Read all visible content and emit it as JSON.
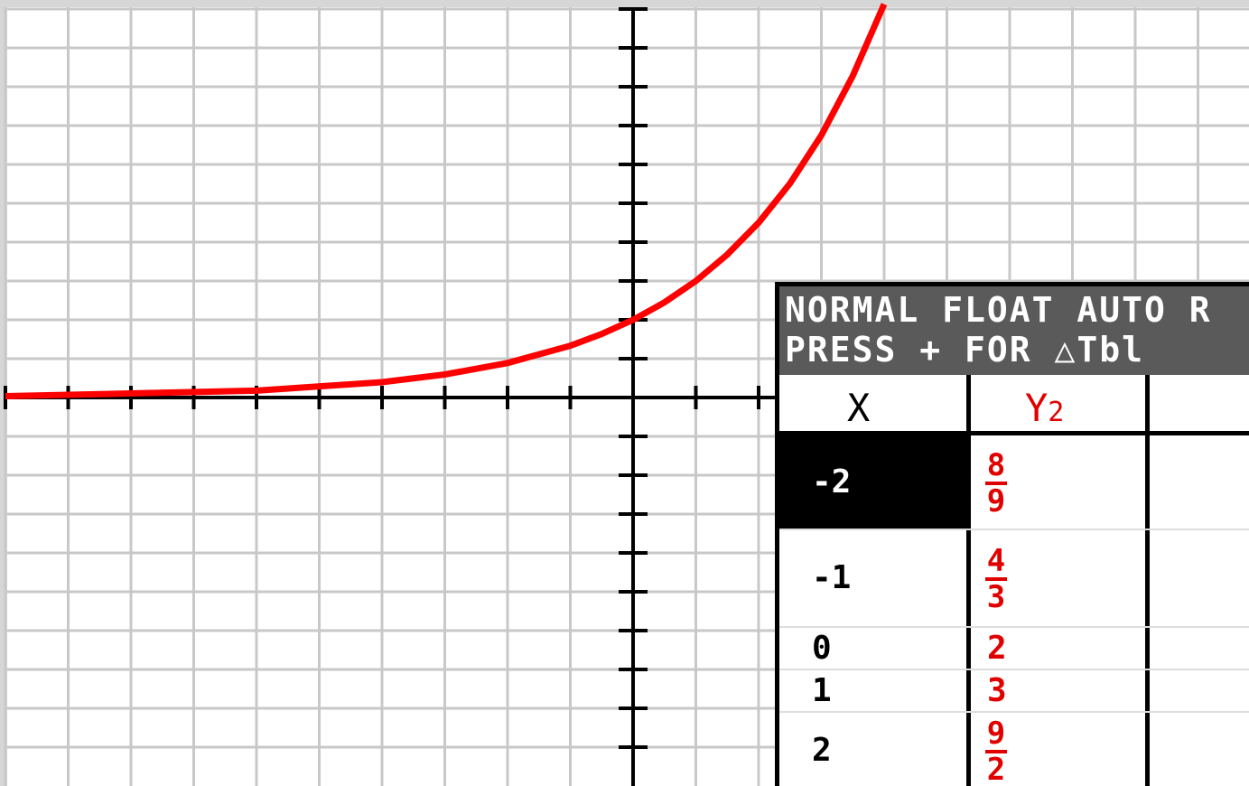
{
  "header": {
    "line1": "NORMAL FLOAT AUTO R",
    "line2": "PRESS + FOR △Tbl"
  },
  "table": {
    "columns": [
      {
        "name": "X"
      },
      {
        "name": "Y",
        "sub": "2"
      }
    ],
    "rows": [
      {
        "x": "-2",
        "y": {
          "num": "8",
          "den": "9"
        }
      },
      {
        "x": "-1",
        "y": {
          "num": "4",
          "den": "3"
        }
      },
      {
        "x": "0",
        "y": "2"
      },
      {
        "x": "1",
        "y": "3"
      },
      {
        "x": "2",
        "y": {
          "num": "9",
          "den": "2"
        }
      }
    ]
  }
}
